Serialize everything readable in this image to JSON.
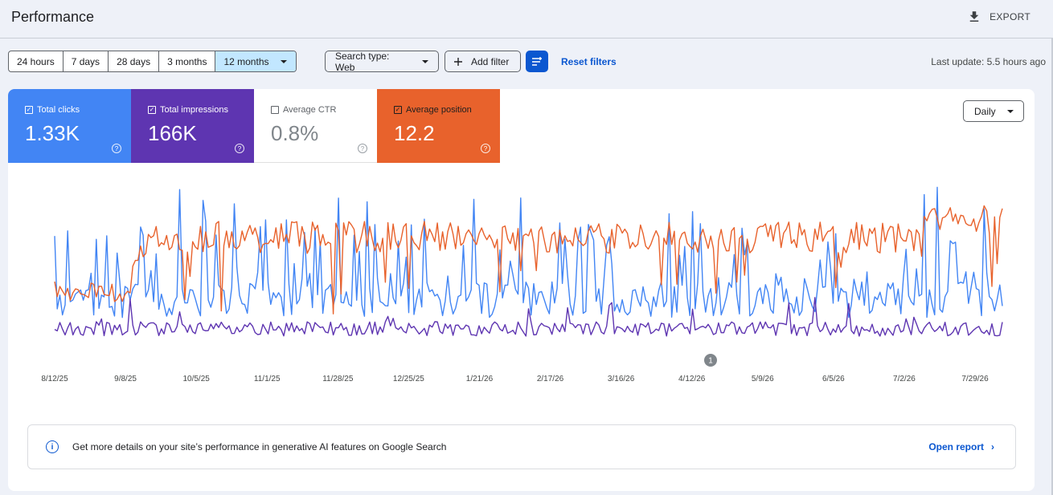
{
  "header": {
    "title": "Performance",
    "export_label": "EXPORT"
  },
  "range_tabs": [
    "24 hours",
    "7 days",
    "28 days",
    "3 months",
    "12 months"
  ],
  "selected_range": "12 months",
  "filters": {
    "search_type": "Search type: Web",
    "add_filter": "Add filter",
    "reset": "Reset filters"
  },
  "last_update": "Last update: 5.5 hours ago",
  "metrics": [
    {
      "label": "Total clicks",
      "value": "1.33K",
      "checked": true,
      "color": "#4285f4"
    },
    {
      "label": "Total impressions",
      "value": "166K",
      "checked": true,
      "color": "#5e35b1"
    },
    {
      "label": "Average CTR",
      "value": "0.8%",
      "checked": false,
      "color": "#ffffff"
    },
    {
      "label": "Average position",
      "value": "12.2",
      "checked": true,
      "color": "#e8622c"
    }
  ],
  "granularity": "Daily",
  "chart_data": {
    "type": "line",
    "x_ticks": [
      "8/12/25",
      "9/8/25",
      "10/5/25",
      "11/1/25",
      "11/28/25",
      "12/25/25",
      "1/21/26",
      "2/17/26",
      "3/16/26",
      "4/12/26",
      "5/9/26",
      "6/5/26",
      "7/2/26",
      "7/29/26"
    ],
    "annotation_marker": "1",
    "grid": false,
    "axes_labels_visible": false,
    "series_colors": {
      "clicks": "#4285f4",
      "impressions": "#5e35b1",
      "position": "#e8622c"
    }
  },
  "info_banner": {
    "text": "Get more details on your site’s performance in generative AI features on Google Search",
    "link": "Open report"
  }
}
